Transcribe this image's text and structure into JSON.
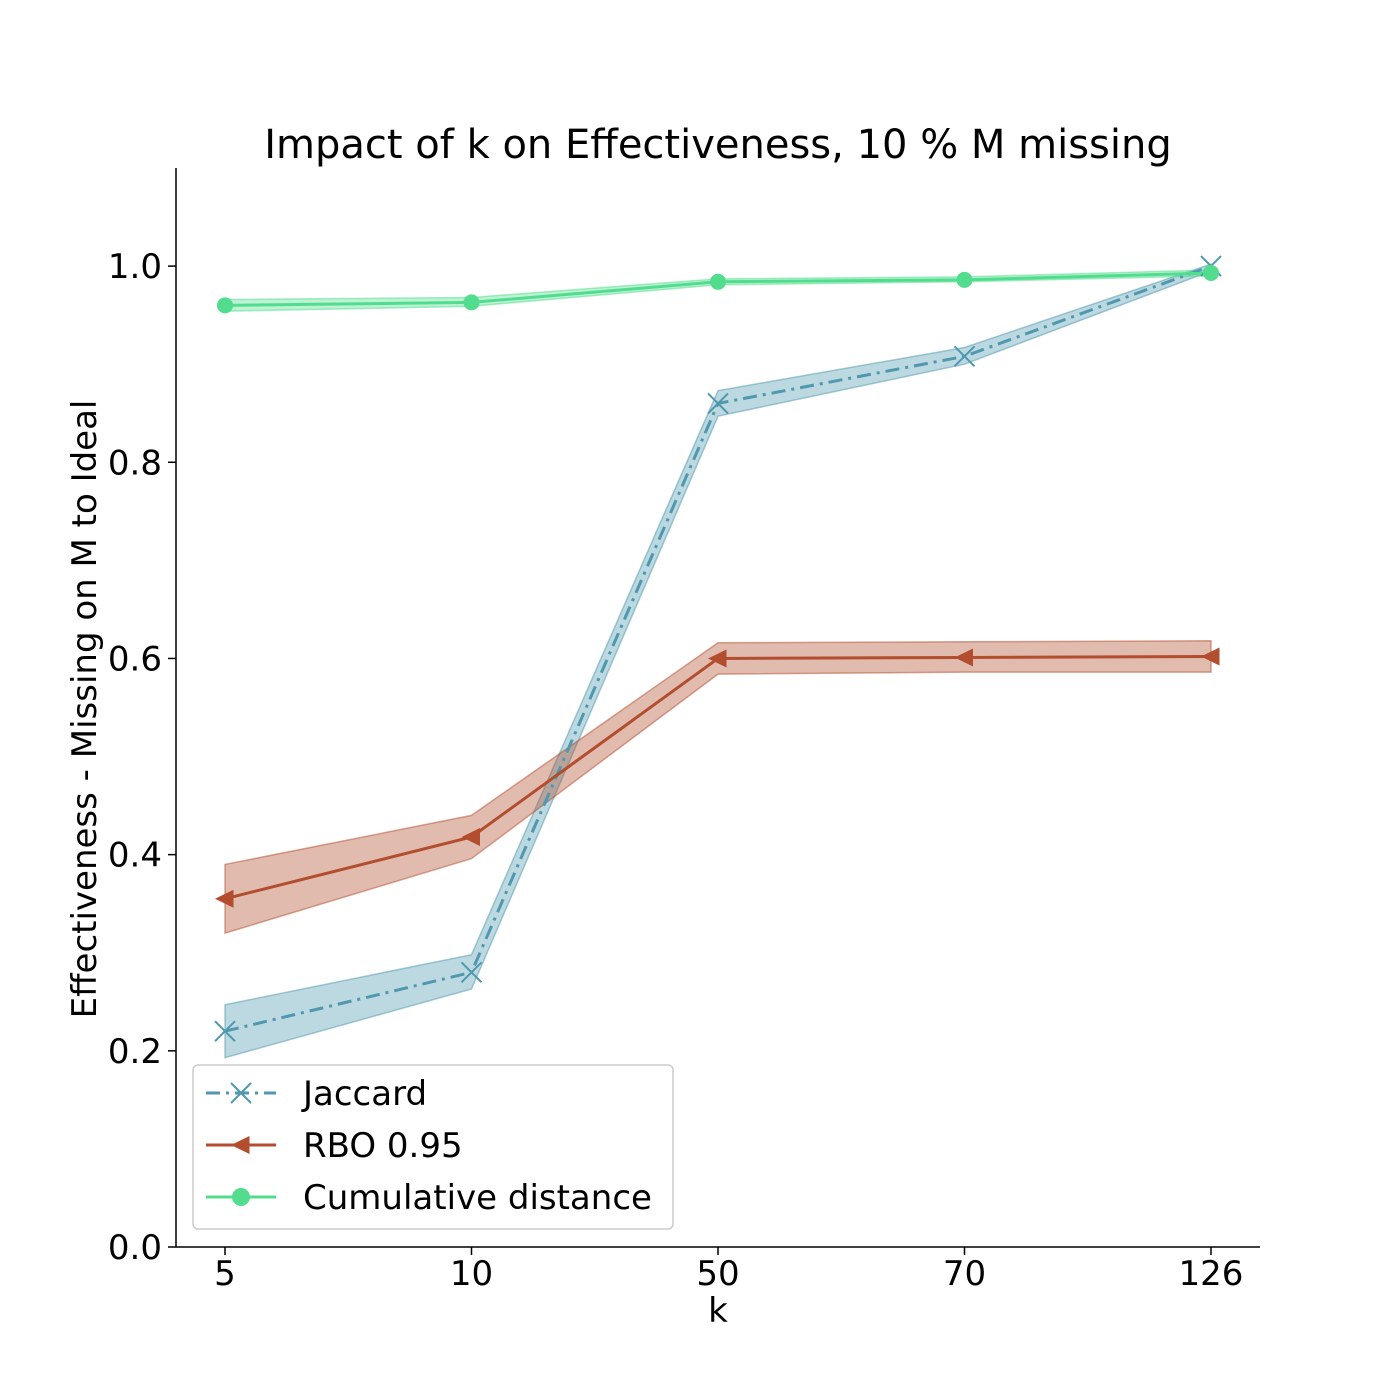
{
  "chart_data": {
    "type": "line",
    "title": "Impact of k on Effectiveness, 10 % M missing",
    "xlabel": "k",
    "ylabel": "Effectiveness - Missing on M to Ideal",
    "categories": [
      "5",
      "10",
      "50",
      "70",
      "126"
    ],
    "ylim": [
      0.0,
      1.1
    ],
    "yticks": [
      "0.0",
      "0.2",
      "0.4",
      "0.6",
      "0.8",
      "1.0"
    ],
    "grid": false,
    "legend_position": "lower-left",
    "series": [
      {
        "name": "Jaccard",
        "values": [
          0.22,
          0.28,
          0.86,
          0.908,
          1.0
        ],
        "lower": [
          0.193,
          0.263,
          0.847,
          0.9,
          0.995
        ],
        "upper": [
          0.247,
          0.298,
          0.873,
          0.917,
          1.002
        ],
        "color": "#4f98ae",
        "linestyle": "dashdot",
        "marker": "x"
      },
      {
        "name": "RBO 0.95",
        "values": [
          0.355,
          0.418,
          0.6,
          0.601,
          0.602
        ],
        "lower": [
          0.32,
          0.396,
          0.584,
          0.586,
          0.586
        ],
        "upper": [
          0.39,
          0.44,
          0.616,
          0.617,
          0.618
        ],
        "color": "#b24d2e",
        "linestyle": "solid",
        "marker": "triangle-left"
      },
      {
        "name": "Cumulative distance",
        "values": [
          0.96,
          0.963,
          0.984,
          0.986,
          0.993
        ],
        "lower": [
          0.954,
          0.959,
          0.981,
          0.984,
          0.99
        ],
        "upper": [
          0.966,
          0.968,
          0.987,
          0.989,
          0.996
        ],
        "color": "#52dd8e",
        "linestyle": "solid",
        "marker": "circle"
      }
    ]
  }
}
